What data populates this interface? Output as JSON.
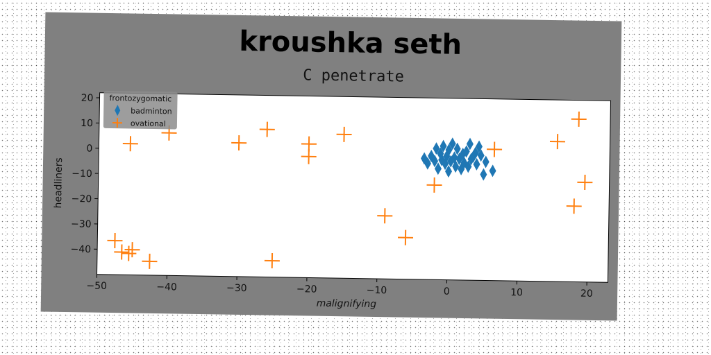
{
  "chart_data": {
    "type": "scatter",
    "title": "kroushka seth",
    "subtitle": "C penetrate",
    "xlabel": "malignifying",
    "ylabel": "headliners",
    "xlim": [
      -50,
      23
    ],
    "ylim": [
      -50,
      22
    ],
    "xticks": [
      -50,
      -40,
      -30,
      -20,
      -10,
      0,
      10,
      20
    ],
    "yticks": [
      -40,
      -30,
      -20,
      -10,
      0,
      10,
      20
    ],
    "grid": false,
    "legend": {
      "title": "frontozygomatic",
      "placement": "top-left"
    },
    "series": [
      {
        "name": "badminton",
        "marker": "thin_diamond",
        "color": "#1f77b4",
        "points": [
          [
            -3.5,
            -2
          ],
          [
            -3,
            -4
          ],
          [
            -2.5,
            -1
          ],
          [
            -2,
            -3
          ],
          [
            -1.8,
            2
          ],
          [
            -1.5,
            -6
          ],
          [
            -1.2,
            0
          ],
          [
            -1,
            -2.5
          ],
          [
            -0.8,
            3
          ],
          [
            -0.5,
            -4
          ],
          [
            -0.3,
            -1
          ],
          [
            0,
            1.5
          ],
          [
            0,
            -7
          ],
          [
            0.3,
            -3
          ],
          [
            0.5,
            4
          ],
          [
            0.8,
            -1.5
          ],
          [
            1,
            -5
          ],
          [
            1.2,
            2
          ],
          [
            1.5,
            -2
          ],
          [
            1.8,
            -6
          ],
          [
            2,
            0
          ],
          [
            2.2,
            -3.5
          ],
          [
            2.5,
            1
          ],
          [
            2.8,
            -5
          ],
          [
            3,
            4
          ],
          [
            3.2,
            -2
          ],
          [
            3.5,
            -1
          ],
          [
            3.8,
            0.5
          ],
          [
            4,
            -4
          ],
          [
            4.3,
            3
          ],
          [
            4.6,
            -0.5
          ],
          [
            5,
            -8
          ],
          [
            5.3,
            -3
          ],
          [
            6.3,
            -6.5
          ]
        ]
      },
      {
        "name": "ovational",
        "marker": "plus",
        "color": "#ff7f0e",
        "points": [
          [
            -47.5,
            -36.5
          ],
          [
            -46.5,
            -41
          ],
          [
            -45.5,
            2
          ],
          [
            -45.5,
            -41.5
          ],
          [
            -45,
            -40
          ],
          [
            -42.5,
            -44.5
          ],
          [
            -40,
            6.5
          ],
          [
            -30,
            3
          ],
          [
            -26,
            8.5
          ],
          [
            -25,
            -43.5
          ],
          [
            -20,
            3
          ],
          [
            -20,
            -2
          ],
          [
            -15,
            7
          ],
          [
            -9,
            -25
          ],
          [
            -6,
            -33.5
          ],
          [
            -2,
            -12.5
          ],
          [
            6.5,
            2
          ],
          [
            15.5,
            5.5
          ],
          [
            18,
            -20
          ],
          [
            18.5,
            14.5
          ],
          [
            19.5,
            -10.5
          ]
        ]
      }
    ]
  }
}
